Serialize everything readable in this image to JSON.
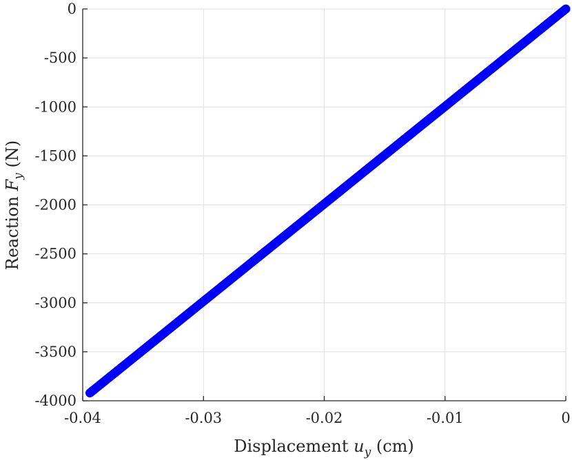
{
  "chart_data": {
    "type": "line",
    "title": "",
    "xlabel": {
      "prefix": "Displacement ",
      "symbol": "u",
      "subscript": "y",
      "suffix": " (cm)"
    },
    "ylabel": {
      "prefix": "Reaction ",
      "symbol": "F",
      "subscript": "y",
      "suffix": " (N)"
    },
    "xlim": [
      -0.04,
      0
    ],
    "ylim": [
      -4000,
      0
    ],
    "xticks": [
      -0.04,
      -0.03,
      -0.02,
      -0.01,
      0
    ],
    "xtick_labels": [
      "-0.04",
      "-0.03",
      "-0.02",
      "-0.01",
      "0"
    ],
    "yticks": [
      0,
      -500,
      -1000,
      -1500,
      -2000,
      -2500,
      -3000,
      -3500,
      -4000
    ],
    "ytick_labels": [
      "0",
      "-500",
      "-1000",
      "-1500",
      "-2000",
      "-2500",
      "-3000",
      "-3500",
      "-4000"
    ],
    "grid": true,
    "series": [
      {
        "color": "#0000ff",
        "x": [
          -0.0394,
          0
        ],
        "y": [
          -3920,
          0
        ]
      }
    ]
  }
}
